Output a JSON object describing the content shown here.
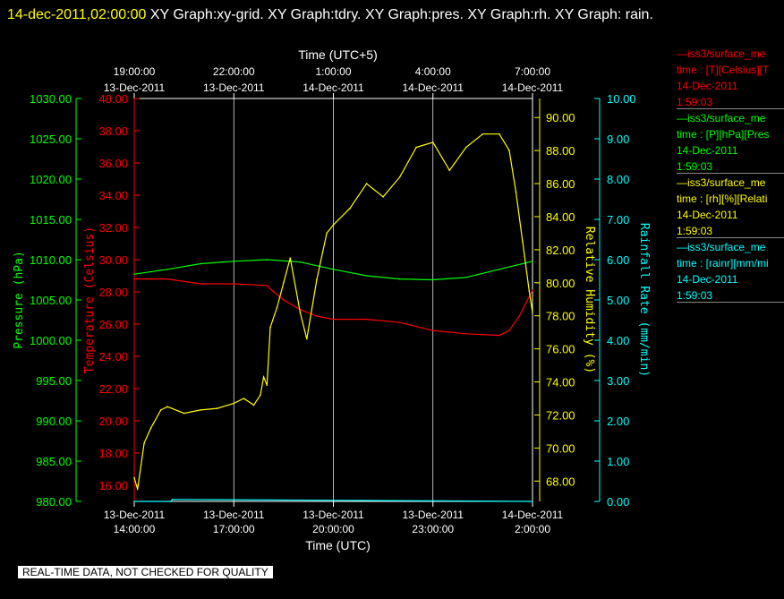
{
  "header": {
    "timestamp": "14-dec-2011,02:00:00",
    "titles": "XY Graph:xy-grid.  XY Graph:tdry.  XY Graph:pres.  XY Graph:rh.  XY Graph: rain."
  },
  "colors": {
    "pressure": "#00ff00",
    "temperature": "#ff0000",
    "humidity": "#ffff00",
    "rain": "#00ffff",
    "grid": "#ffffff",
    "background": "#000000"
  },
  "legend": [
    {
      "source": "iss3/surface_me",
      "variable": "time : [T][Celsius][T",
      "date": "14-Dec-2011",
      "time": "1:59:03",
      "color": "#ff0000"
    },
    {
      "source": "iss3/surface_me",
      "variable": "time : [P][hPa][Pres",
      "date": "14-Dec-2011",
      "time": "1:59:03",
      "color": "#00ff00"
    },
    {
      "source": "iss3/surface_me",
      "variable": "time : [rh][%][Relati",
      "date": "14-Dec-2011",
      "time": "1:59:03",
      "color": "#ffff00"
    },
    {
      "source": "iss3/surface_me",
      "variable": "time : [rainr][mm/mi",
      "date": "14-Dec-2011",
      "time": "1:59:03",
      "color": "#00ffff"
    }
  ],
  "footer_note": "REAL-TIME DATA, NOT CHECKED FOR QUALITY",
  "chart_data": {
    "type": "line",
    "top_axis": {
      "label": "Time (UTC+5)",
      "ticks": [
        {
          "time": "19:00:00",
          "date": "13-Dec-2011",
          "hours": 0
        },
        {
          "time": "22:00:00",
          "date": "13-Dec-2011",
          "hours": 3
        },
        {
          "time": "1:00:00",
          "date": "14-Dec-2011",
          "hours": 6
        },
        {
          "time": "4:00:00",
          "date": "14-Dec-2011",
          "hours": 9
        },
        {
          "time": "7:00:00",
          "date": "14-Dec-2011",
          "hours": 12
        }
      ]
    },
    "bottom_axis": {
      "label": "Time (UTC)",
      "xlim": [
        0,
        12
      ],
      "ticks": [
        {
          "date": "13-Dec-2011",
          "time": "14:00:00",
          "hours": 0
        },
        {
          "date": "13-Dec-2011",
          "time": "17:00:00",
          "hours": 3
        },
        {
          "date": "13-Dec-2011",
          "time": "20:00:00",
          "hours": 6
        },
        {
          "date": "13-Dec-2011",
          "time": "23:00:00",
          "hours": 9
        },
        {
          "date": "14-Dec-2011",
          "time": "2:00:00",
          "hours": 12
        }
      ]
    },
    "pressure_axis": {
      "label": "Pressure (hPa)",
      "ylim": [
        980,
        1030
      ],
      "ticks": [
        "980.00",
        "985.00",
        "990.00",
        "995.00",
        "1000.00",
        "1005.00",
        "1010.00",
        "1015.00",
        "1020.00",
        "1025.00",
        "1030.00"
      ]
    },
    "temperature_axis": {
      "label": "Temperature (Celsius)",
      "ylim": [
        15,
        40
      ],
      "ticks": [
        "16.00",
        "18.00",
        "20.00",
        "22.00",
        "24.00",
        "26.00",
        "28.00",
        "30.00",
        "32.00",
        "34.00",
        "36.00",
        "38.00",
        "40.00"
      ]
    },
    "humidity_axis": {
      "label": "Relative Humidity (%)",
      "ylim": [
        66.77,
        91.15
      ],
      "ticks": [
        "68.00",
        "70.00",
        "72.00",
        "74.00",
        "76.00",
        "78.00",
        "80.00",
        "82.00",
        "84.00",
        "86.00",
        "88.00",
        "90.00"
      ]
    },
    "rain_axis": {
      "label": "Rainfall Rate (mm/min)",
      "ylim": [
        0,
        10
      ],
      "ticks": [
        "0.00",
        "1.00",
        "2.00",
        "3.00",
        "4.00",
        "5.00",
        "6.00",
        "7.00",
        "8.00",
        "9.00",
        "10.00"
      ]
    },
    "series": [
      {
        "id": "pressure",
        "x": [
          0,
          1,
          2,
          3,
          4,
          5,
          6,
          7,
          8,
          9,
          10,
          11,
          11.8,
          12
        ],
        "values": [
          1008.2,
          1008.8,
          1009.5,
          1009.8,
          1010.0,
          1009.7,
          1008.8,
          1008.0,
          1007.6,
          1007.5,
          1007.8,
          1008.8,
          1009.6,
          1009.8
        ]
      },
      {
        "id": "temperature",
        "x": [
          0,
          1,
          2,
          3,
          4,
          4.2,
          4.5,
          5,
          5.5,
          6,
          7,
          8,
          9,
          10,
          11,
          11.3,
          11.6,
          12
        ],
        "values": [
          28.8,
          28.8,
          28.5,
          28.5,
          28.4,
          28.0,
          27.5,
          26.9,
          26.5,
          26.3,
          26.3,
          26.1,
          25.6,
          25.4,
          25.3,
          25.6,
          26.5,
          28.1
        ]
      },
      {
        "id": "humidity",
        "x": [
          0,
          0.1,
          0.3,
          0.5,
          0.8,
          1,
          1.5,
          2,
          2.5,
          3,
          3.3,
          3.6,
          3.8,
          3.9,
          4,
          4.1,
          4.3,
          4.5,
          4.7,
          5,
          5.2,
          5.5,
          5.8,
          6,
          6.5,
          7,
          7.5,
          8,
          8.5,
          9,
          9.5,
          10,
          10.5,
          11,
          11.3,
          11.5,
          11.7,
          11.9,
          12
        ],
        "values": [
          68.2,
          67.5,
          70.3,
          71.2,
          72.3,
          72.5,
          72.1,
          72.3,
          72.4,
          72.7,
          73.0,
          72.6,
          73.2,
          74.3,
          73.8,
          77.3,
          78.5,
          80.0,
          81.5,
          78.2,
          76.6,
          80.2,
          83.0,
          83.5,
          84.5,
          86.0,
          85.2,
          86.4,
          88.2,
          88.5,
          86.8,
          88.2,
          89.0,
          89.0,
          88.0,
          85.5,
          82.5,
          79.5,
          78.2
        ]
      },
      {
        "id": "rain",
        "x": [
          0,
          1.1,
          1.15,
          12
        ],
        "values": [
          0.0,
          0.0,
          0.05,
          0.0
        ]
      }
    ]
  }
}
